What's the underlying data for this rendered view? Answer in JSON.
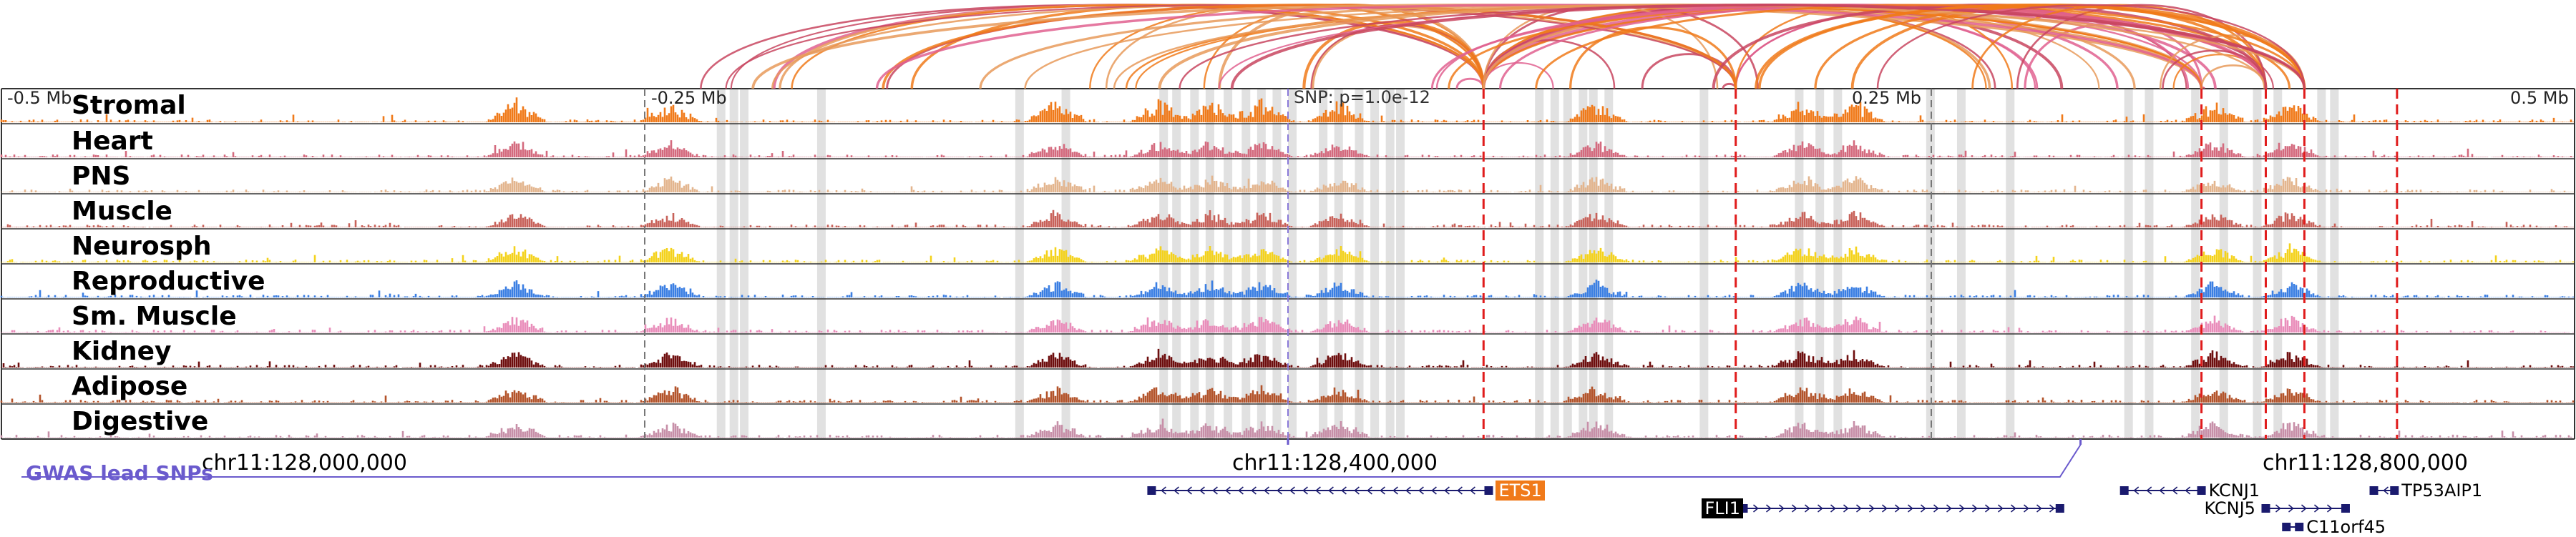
{
  "ruler": {
    "labels": [
      {
        "text": "-0.5 Mb",
        "pos": 0.0
      },
      {
        "text": "-0.25 Mb",
        "pos": 0.25
      },
      {
        "text": "0.25 Mb",
        "pos": 0.75
      },
      {
        "text": "0.5 Mb",
        "pos": 1.0
      }
    ],
    "snp_label": "SNP: p=1.0e-12"
  },
  "tracks": [
    {
      "name": "Stromal",
      "color": "#f07a1a"
    },
    {
      "name": "Heart",
      "color": "#d46a7e"
    },
    {
      "name": "PNS",
      "color": "#e3b58e"
    },
    {
      "name": "Muscle",
      "color": "#c8625a"
    },
    {
      "name": "Neurosph",
      "color": "#f4d21c"
    },
    {
      "name": "Reproductive",
      "color": "#3b7fe3"
    },
    {
      "name": "Sm. Muscle",
      "color": "#e98dba"
    },
    {
      "name": "Kidney",
      "color": "#6e0e0e"
    },
    {
      "name": "Adipose",
      "color": "#b3532a"
    },
    {
      "name": "Digestive",
      "color": "#c78fa8"
    }
  ],
  "coordinates": [
    {
      "text": "chr11:128,000,000",
      "pos": 0.155
    },
    {
      "text": "chr11:128,400,000",
      "pos": 0.555
    },
    {
      "text": "chr11:128,800,000",
      "pos": 0.955
    }
  ],
  "gwas": {
    "label": "GWAS lead SNPs",
    "color": "#6a5acd"
  },
  "genes": [
    {
      "name": "ETS1",
      "strand": "-",
      "start": 0.447,
      "end": 0.578,
      "row": 0,
      "highlight": "#f07a1a",
      "label_side": "right"
    },
    {
      "name": "FLI1",
      "strand": "+",
      "start": 0.677,
      "end": 0.8,
      "row": 1,
      "highlight": "#000000",
      "label_side": "left"
    },
    {
      "name": "KCNJ1",
      "strand": "-",
      "start": 0.825,
      "end": 0.855,
      "row": 0,
      "highlight": "",
      "label_side": "right"
    },
    {
      "name": "KCNJ5",
      "strand": "+",
      "start": 0.88,
      "end": 0.911,
      "row": 1,
      "highlight": "",
      "label_side": "left"
    },
    {
      "name": "C11orf45",
      "strand": "-",
      "start": 0.888,
      "end": 0.893,
      "row": 2,
      "highlight": "",
      "label_side": "right"
    },
    {
      "name": "TP53AIP1",
      "strand": "-",
      "start": 0.922,
      "end": 0.93,
      "row": 0,
      "highlight": "",
      "label_side": "right"
    }
  ],
  "highlight_color": "#dcdcdc",
  "line_color": "#e01c1c",
  "loop_colors": [
    "#f07a1a",
    "#c8455f",
    "#e0608f",
    "#e89a5a"
  ]
}
